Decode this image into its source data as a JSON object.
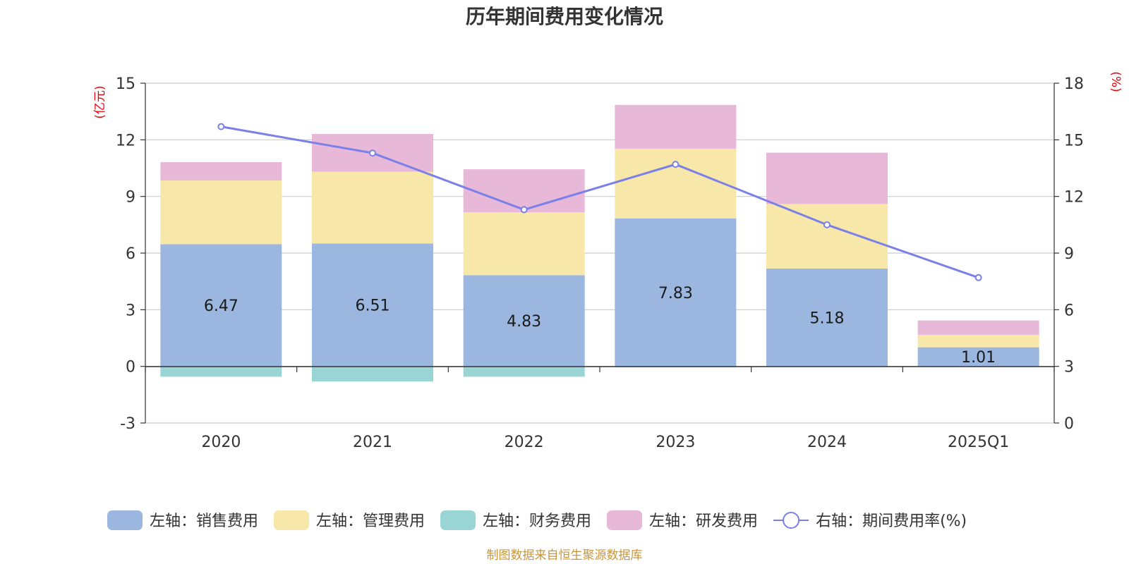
{
  "chart_data": {
    "type": "bar",
    "stacked": true,
    "title": "历年期间费用变化情况",
    "categories": [
      "2020",
      "2021",
      "2022",
      "2023",
      "2024",
      "2025Q1"
    ],
    "left_axis": {
      "unit": "(亿元)",
      "ylim": [
        -3,
        15
      ],
      "ticks": [
        "15",
        "12",
        "9",
        "6",
        "3",
        "0",
        "-3"
      ]
    },
    "right_axis": {
      "unit": "(%)",
      "ylim": [
        0,
        18
      ],
      "ticks": [
        "18",
        "15",
        "12",
        "9",
        "6",
        "3",
        "0"
      ]
    },
    "series": [
      {
        "name": "左轴：销售费用",
        "axis": "left",
        "color": "#9bb7e0",
        "values": [
          6.47,
          6.51,
          4.83,
          7.83,
          5.18,
          1.01
        ],
        "labels": [
          "6.47",
          "6.51",
          "4.83",
          "7.83",
          "5.18",
          "1.01"
        ]
      },
      {
        "name": "左轴：管理费用",
        "axis": "left",
        "color": "#f7e7a9",
        "values": [
          3.38,
          3.8,
          3.33,
          3.7,
          3.42,
          0.66
        ]
      },
      {
        "name": "左轴：财务费用",
        "axis": "left",
        "color": "#99d5d5",
        "values": [
          -0.55,
          -0.8,
          -0.55,
          -0.05,
          -0.03,
          0.0
        ]
      },
      {
        "name": "左轴：研发费用",
        "axis": "left",
        "color": "#e8b8d8",
        "values": [
          0.97,
          2.0,
          2.28,
          2.32,
          2.72,
          0.76
        ]
      },
      {
        "name": "右轴：期间费用率(%)",
        "axis": "right",
        "type": "line",
        "color": "#7b80e8",
        "values": [
          15.7,
          14.3,
          11.3,
          13.7,
          10.5,
          7.7
        ]
      }
    ],
    "grid": true,
    "legend_position": "bottom"
  },
  "footer": {
    "source": "制图数据来自恒生聚源数据库"
  }
}
